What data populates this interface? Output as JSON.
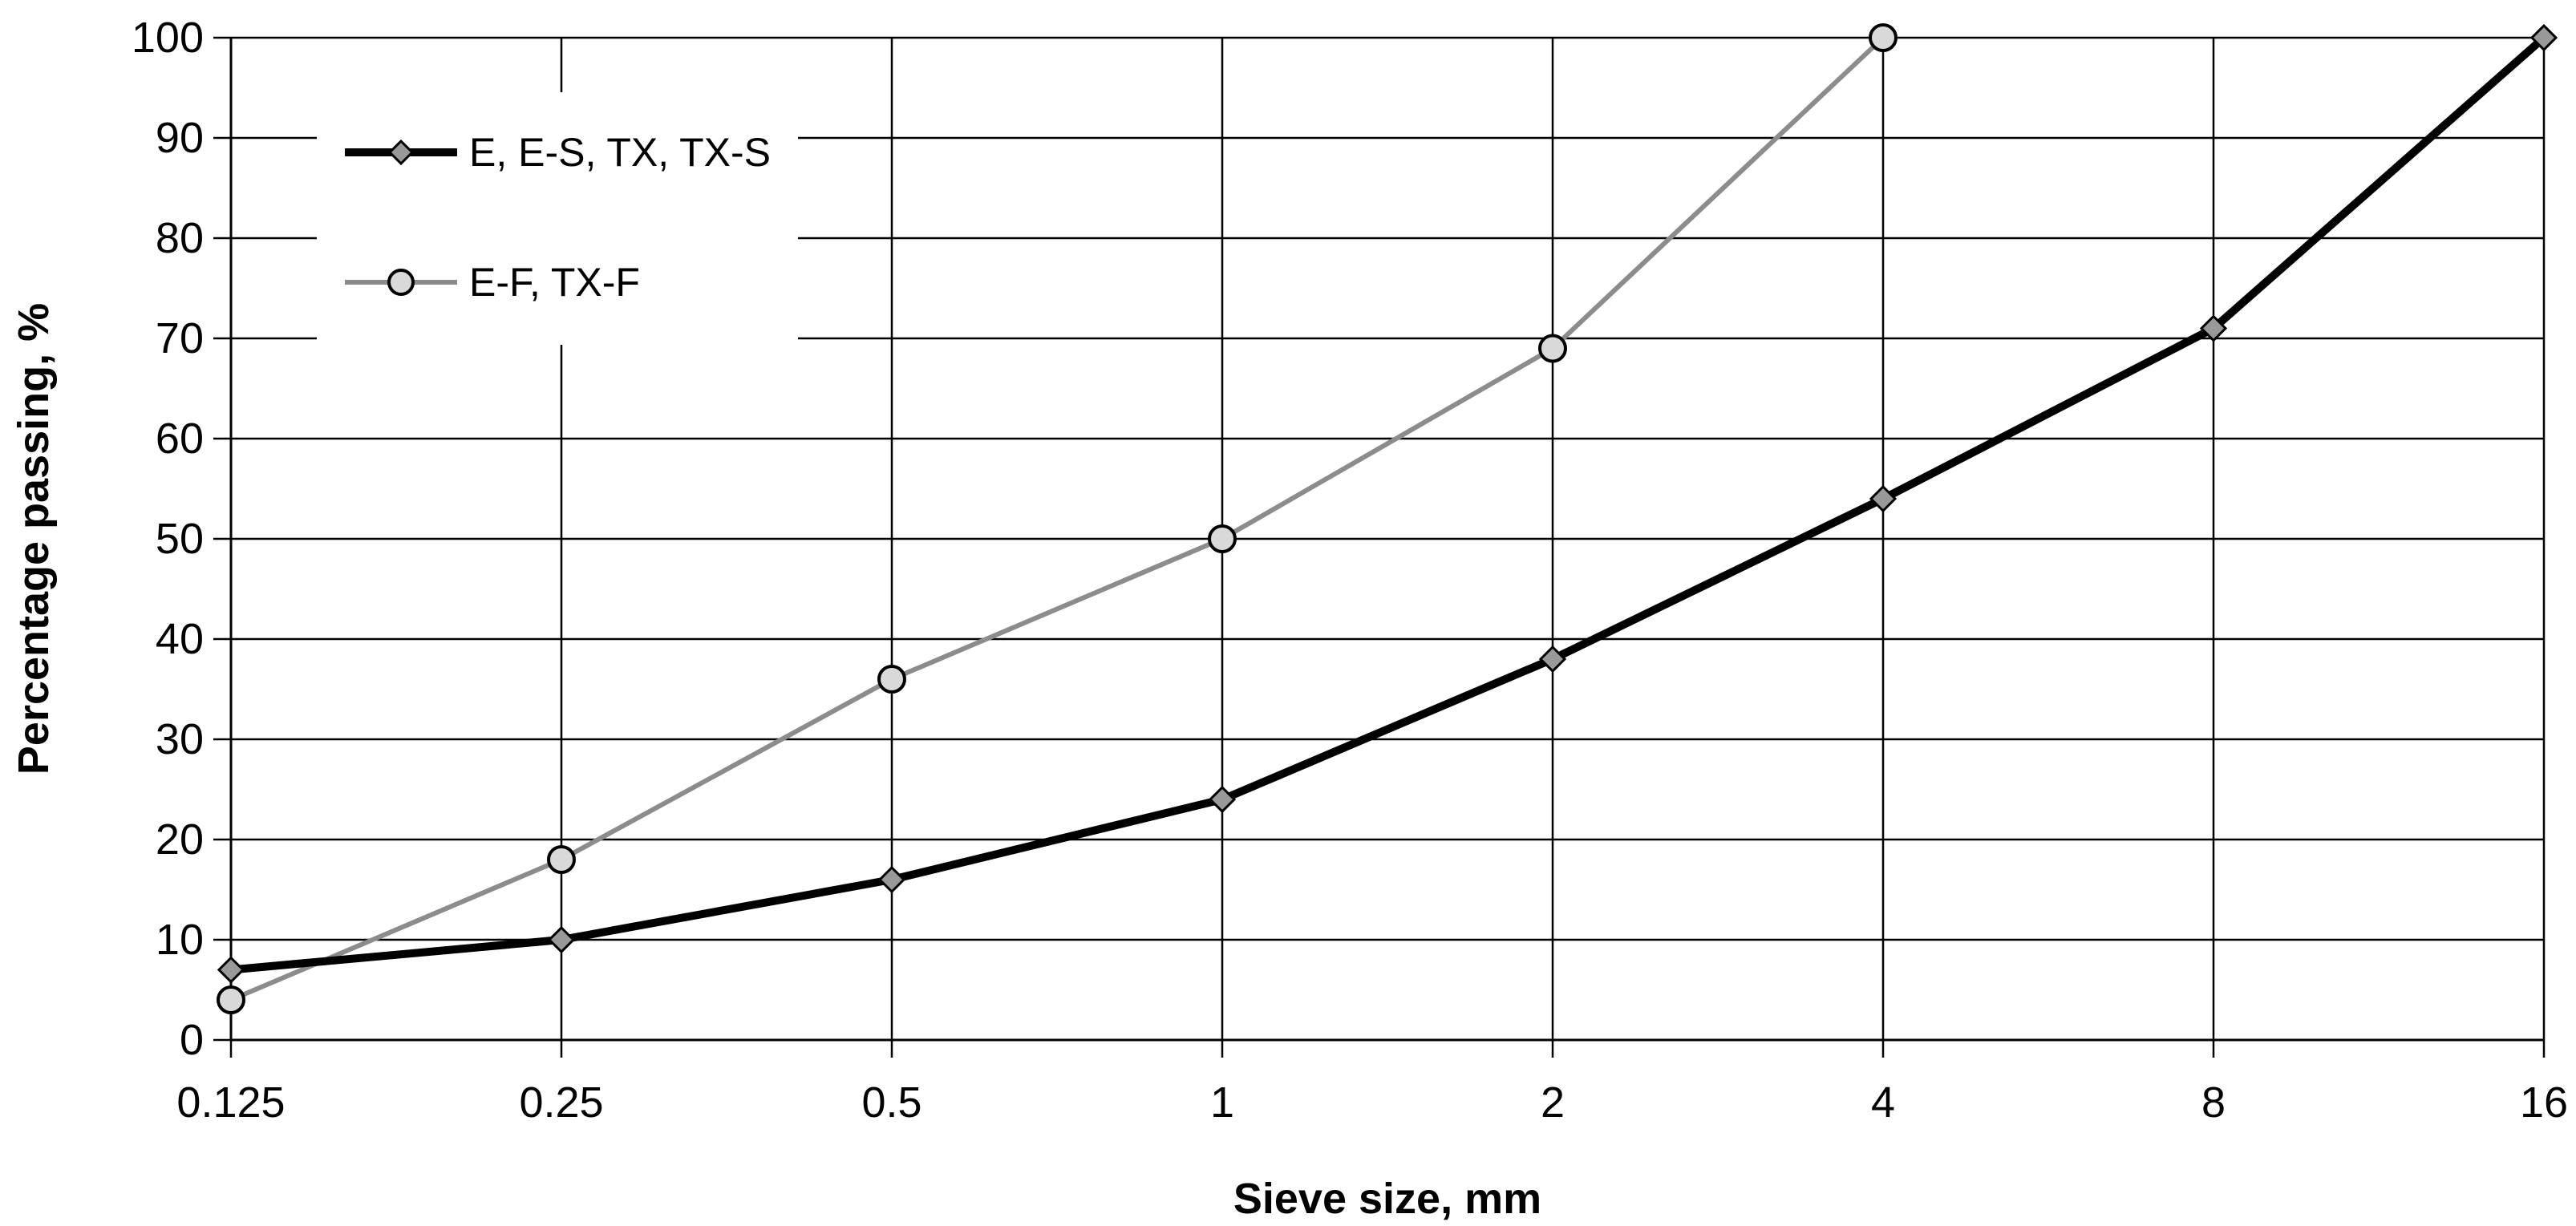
{
  "chart_data": {
    "type": "line",
    "title": "",
    "xlabel": "Sieve size, mm",
    "ylabel": "Percentage passing, %",
    "x_scale": "log2",
    "categories": [
      "0.125",
      "0.25",
      "0.5",
      "1",
      "2",
      "4",
      "8",
      "16"
    ],
    "ylim": [
      0,
      100
    ],
    "yticks": [
      "0",
      "10",
      "20",
      "30",
      "40",
      "50",
      "60",
      "70",
      "80",
      "90",
      "100"
    ],
    "grid": true,
    "legend_position": "top-left",
    "series": [
      {
        "name": "E, E-S, TX, TX-S",
        "marker": "diamond",
        "color": "#000000",
        "marker_fill": "#999999",
        "x": [
          0.125,
          0.25,
          0.5,
          1,
          2,
          4,
          8,
          16
        ],
        "values": [
          7,
          10,
          16,
          24,
          38,
          54,
          71,
          100
        ]
      },
      {
        "name": "E-F, TX-F",
        "marker": "circle",
        "color": "#8c8c8c",
        "marker_fill": "#d9d9d9",
        "x": [
          0.125,
          0.25,
          0.5,
          1,
          2,
          4
        ],
        "values": [
          4,
          18,
          36,
          50,
          69,
          100
        ]
      }
    ]
  }
}
